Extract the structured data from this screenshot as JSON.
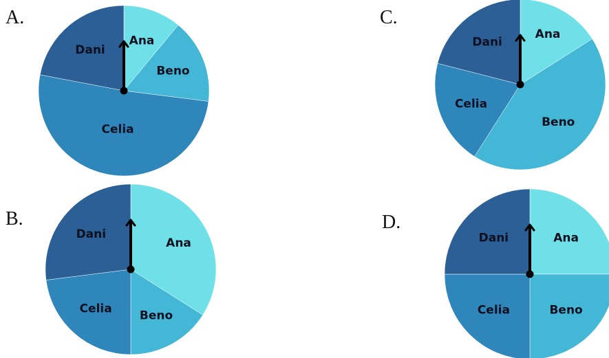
{
  "page": {
    "line_color": "#000000"
  },
  "chart_data": [
    {
      "type": "pie",
      "option_label": "A.",
      "start_angle_deg": 0,
      "direction": "clockwise",
      "categories": [
        "Ana",
        "Beno",
        "Celia",
        "Dani"
      ],
      "values": [
        11,
        16,
        51,
        22
      ],
      "colors": [
        "#6fe0e7",
        "#45b7d6",
        "#2e86bb",
        "#2b5f95"
      ],
      "has_arrow": true
    },
    {
      "type": "pie",
      "option_label": "B.",
      "start_angle_deg": 0,
      "direction": "clockwise",
      "categories": [
        "Ana",
        "Beno",
        "Celia",
        "Dani"
      ],
      "values": [
        34,
        16,
        23,
        27
      ],
      "colors": [
        "#6fe0e7",
        "#45b7d6",
        "#2e86bb",
        "#2b5f95"
      ],
      "has_arrow": true
    },
    {
      "type": "pie",
      "option_label": "C.",
      "start_angle_deg": 0,
      "direction": "clockwise",
      "categories": [
        "Ana",
        "Beno",
        "Celia",
        "Dani"
      ],
      "values": [
        16,
        43,
        20,
        21
      ],
      "colors": [
        "#6fe0e7",
        "#45b7d6",
        "#2e86bb",
        "#2b5f95"
      ],
      "has_arrow": true
    },
    {
      "type": "pie",
      "option_label": "D.",
      "start_angle_deg": 0,
      "direction": "clockwise",
      "categories": [
        "Ana",
        "Beno",
        "Celia",
        "Dani"
      ],
      "values": [
        25,
        25,
        25,
        25
      ],
      "colors": [
        "#6fe0e7",
        "#45b7d6",
        "#2e86bb",
        "#2b5f95"
      ],
      "has_arrow": true
    }
  ]
}
